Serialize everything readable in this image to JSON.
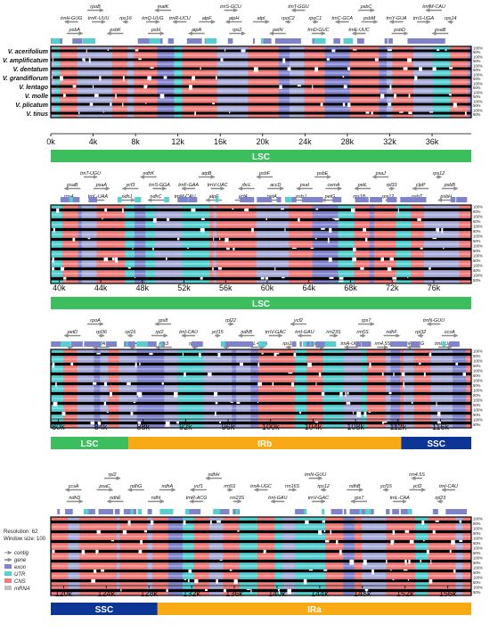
{
  "species": [
    "V. acerifolium",
    "V. amplificatum",
    "V. dentatum",
    "V. grandiflorum",
    "V. lentago",
    "V. molle",
    "V. plicatum",
    "V. tinus"
  ],
  "percent_labels": [
    "100%",
    "50%"
  ],
  "settings": {
    "resolution": "Resolution: 62",
    "window": "Window size: 100"
  },
  "legend": [
    {
      "name": "contig",
      "color": "#bbbbbb"
    },
    {
      "name": "gene",
      "color": "#888888"
    },
    {
      "name": "exon",
      "color": "#7f82cc"
    },
    {
      "name": "UTR",
      "color": "#55d0d0"
    },
    {
      "name": "CNS",
      "color": "#f07b78"
    },
    {
      "name": "mRNA",
      "color": "#c0c0c0"
    }
  ],
  "colors": {
    "exon": "#7f82cc",
    "utr": "#55d0d0",
    "cns": "#f07b78",
    "track": "#a8acd8",
    "black": "#000000",
    "lsc": "#3cbd5e",
    "ir": "#f8aa16",
    "ssc": "#0c3596",
    "arrow": "#8c8c8c"
  },
  "panels": [
    {
      "ticks": [
        "0k",
        "4k",
        "8k",
        "12k",
        "16k",
        "20k",
        "24k",
        "28k",
        "32k",
        "36k"
      ],
      "tick_kb": [
        0,
        4,
        8,
        12,
        16,
        20,
        24,
        28,
        32,
        36
      ],
      "start_kb": 0,
      "end_kb": 39.7,
      "genes_top": [
        "rpoB",
        "matK",
        "trnS-GCU",
        "trnT-GGU",
        "psbC",
        "trnfM-CAU"
      ],
      "genes_mid": [
        "trnH-GUG",
        "trnK-UUU",
        "rps16",
        "trnQ-UUG",
        "trnR-UCU",
        "atpF",
        "atpH",
        "atpI",
        "rpoC2",
        "rpoC1",
        "trnC-GCA",
        "psbM",
        "trnY-GUA",
        "trnS-UGA",
        "rps14"
      ],
      "genes_bottom": [
        "psbA",
        "psbK",
        "psbI",
        "atpA",
        "rps2",
        "petN",
        "trnD-GUC",
        "trnE-UUC",
        "psbD",
        "psaB"
      ],
      "regions": [
        {
          "name": "LSC",
          "start_kb": 0,
          "end_kb": 39.7,
          "type": "lsc"
        }
      ]
    },
    {
      "ticks": [
        "40k",
        "44k",
        "48k",
        "52k",
        "56k",
        "60k",
        "64k",
        "68k",
        "72k",
        "76k"
      ],
      "tick_kb": [
        40,
        44,
        48,
        52,
        56,
        60,
        64,
        68,
        72,
        76
      ],
      "start_kb": 39.2,
      "end_kb": 79.6,
      "genes_top": [
        "trnT-UGU",
        "ndhK",
        "atpB",
        "psbF",
        "psbE",
        "psaJ",
        "rps12"
      ],
      "genes_mid": [
        "psaB",
        "psaA",
        "ycf3",
        "trnS-GGA",
        "trnF-GAA",
        "trnV-UAC",
        "rbcL",
        "accD",
        "psaI",
        "cemA",
        "petL",
        "rpl33",
        "clpP",
        "psbB"
      ],
      "genes_bottom": [
        "rps4",
        "trnL-UAA",
        "ndhJ",
        "ndhC",
        "trnM-CAU",
        "atpE",
        "ycf4",
        "petA",
        "psbJ",
        "petG",
        "rps18",
        "rps12",
        "psbT",
        "psbH"
      ],
      "regions": [
        {
          "name": "LSC",
          "start_kb": 39.2,
          "end_kb": 79.6,
          "type": "lsc"
        }
      ]
    },
    {
      "ticks": [
        "80k",
        "84k",
        "88k",
        "92k",
        "96k",
        "100k",
        "104k",
        "108k",
        "112k",
        "116k"
      ],
      "tick_kb": [
        80,
        84,
        88,
        92,
        96,
        100,
        104,
        108,
        112,
        116
      ],
      "start_kb": 79.3,
      "end_kb": 118.9,
      "genes_top": [
        "rpoA",
        "rps8",
        "rpl22",
        "ycf2",
        "rps7",
        "trnN-GUU"
      ],
      "genes_mid": [
        "petD",
        "rpl36",
        "rpl16",
        "rpl2",
        "trnI-CAU",
        "ycf15",
        "ndhB",
        "trnV-GAC",
        "trnI-GAU",
        "rrn23S",
        "rrn5S",
        "ndhF",
        "rpl32",
        "ccsA"
      ],
      "genes_bottom": [
        "rps11",
        "infA",
        "rpl14",
        "rps3",
        "rps19",
        "rpl23",
        "trnL-CAA",
        "rps12",
        "rrn16S",
        "trnA-UGC",
        "rrn4.5S",
        "trnR-ACG",
        "trnL-UAG"
      ],
      "regions": [
        {
          "name": "LSC",
          "start_kb": 79.3,
          "end_kb": 86.6,
          "type": "lsc"
        },
        {
          "name": "IRb",
          "start_kb": 86.6,
          "end_kb": 112.3,
          "type": "ir"
        },
        {
          "name": "SSC",
          "start_kb": 112.3,
          "end_kb": 118.9,
          "type": "ssc"
        }
      ]
    },
    {
      "ticks": [
        "120k",
        "124k",
        "128k",
        "132k",
        "136k",
        "140k",
        "144k",
        "148k",
        "152k",
        "156k"
      ],
      "tick_kb": [
        120,
        124,
        128,
        132,
        136,
        140,
        144,
        148,
        152,
        156
      ],
      "start_kb": 118.8,
      "end_kb": 158.2,
      "genes_top": [
        "rpl2",
        "ndhH",
        "trnN-GUU",
        "rrn4.5S"
      ],
      "genes_mid": [
        "ccsA",
        "psaC",
        "ndhG",
        "ndhA",
        "ycf1",
        "rrn5S",
        "trnA-UGC",
        "rrn16S",
        "rps12",
        "ndhB",
        "ycf15",
        "ycf2",
        "trnI-CAU"
      ],
      "genes_bottom": [
        "ndhD",
        "ndhE",
        "ndhI",
        "trnR-ACG",
        "rrn23S",
        "trnI-GAU",
        "trnV-GAC",
        "rps7",
        "trnL-CAA",
        "rpl23"
      ],
      "regions": [
        {
          "name": "SSC",
          "start_kb": 118.8,
          "end_kb": 128.8,
          "type": "ssc"
        },
        {
          "name": "IRa",
          "start_kb": 128.8,
          "end_kb": 158.2,
          "type": "ir"
        }
      ]
    }
  ]
}
